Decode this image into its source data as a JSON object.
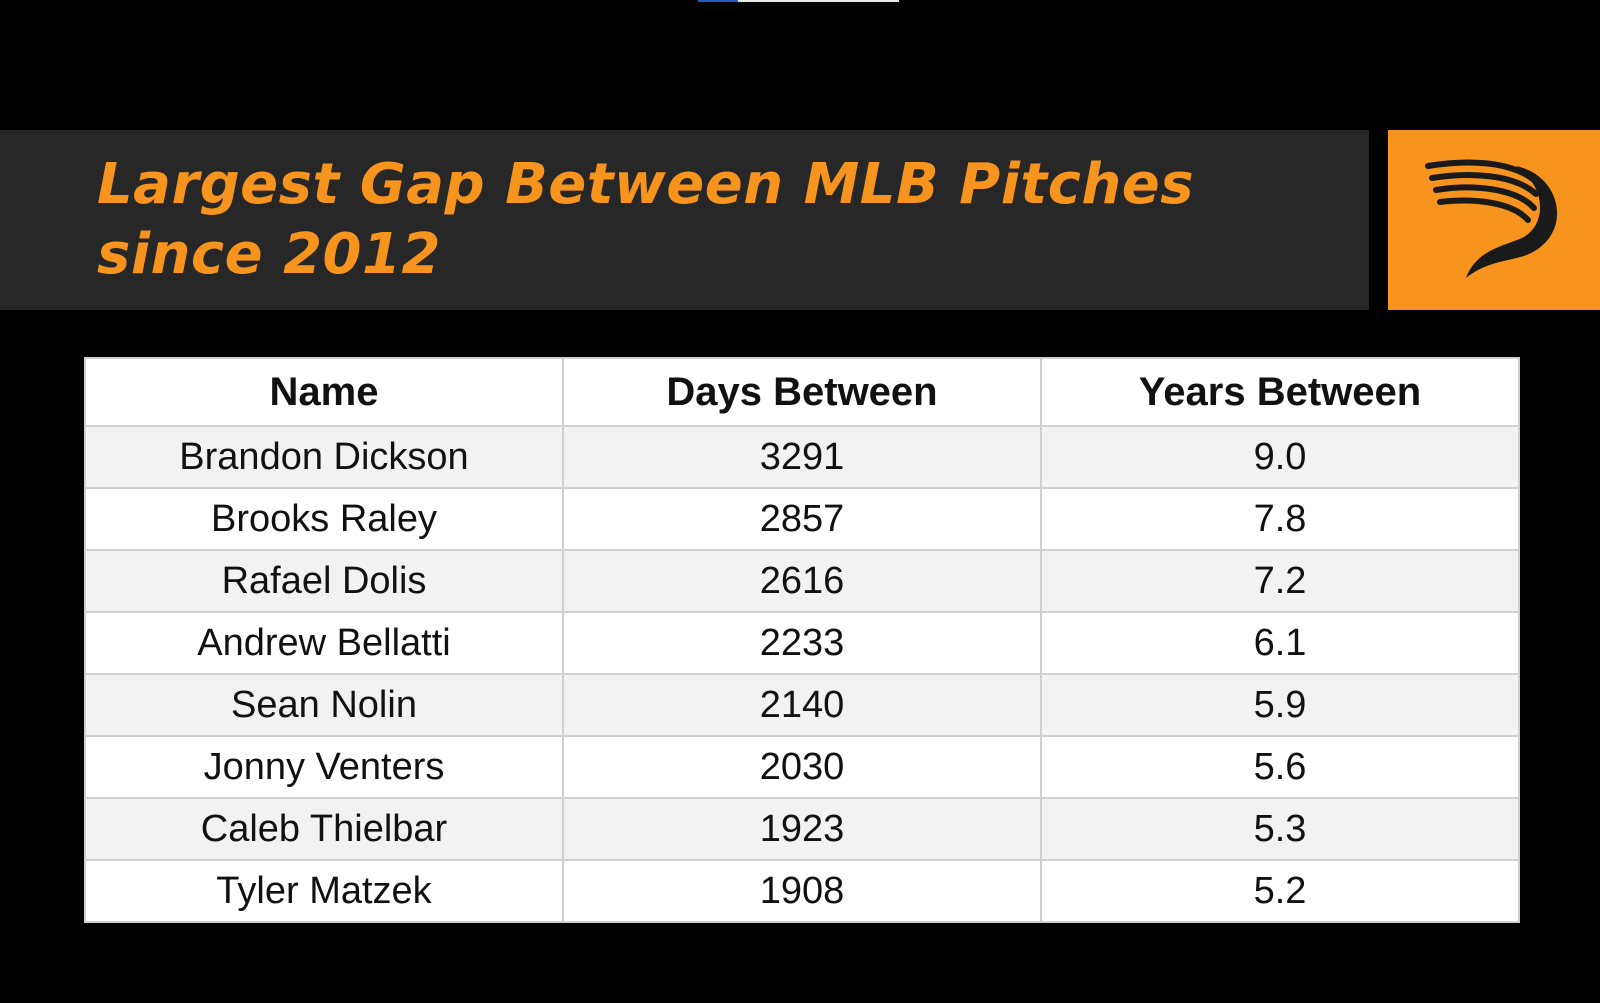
{
  "title": "Largest Gap Between MLB Pitches since 2012",
  "colors": {
    "background": "#000000",
    "title_band": "#272727",
    "accent_orange": "#f7941d",
    "table_stripe": "#f2f2f2",
    "table_border": "#d0d0d0"
  },
  "logo": {
    "icon": "stylized-p-logo-icon"
  },
  "chart_data": {
    "type": "table",
    "title": "Largest Gap Between MLB Pitches since 2012",
    "columns": [
      "Name",
      "Days Between",
      "Years Between"
    ],
    "rows": [
      [
        "Brandon Dickson",
        "3291",
        "9.0"
      ],
      [
        "Brooks Raley",
        "2857",
        "7.8"
      ],
      [
        "Rafael Dolis",
        "2616",
        "7.2"
      ],
      [
        "Andrew Bellatti",
        "2233",
        "6.1"
      ],
      [
        "Sean Nolin",
        "2140",
        "5.9"
      ],
      [
        "Jonny Venters",
        "2030",
        "5.6"
      ],
      [
        "Caleb Thielbar",
        "1923",
        "5.3"
      ],
      [
        "Tyler Matzek",
        "1908",
        "5.2"
      ]
    ]
  }
}
